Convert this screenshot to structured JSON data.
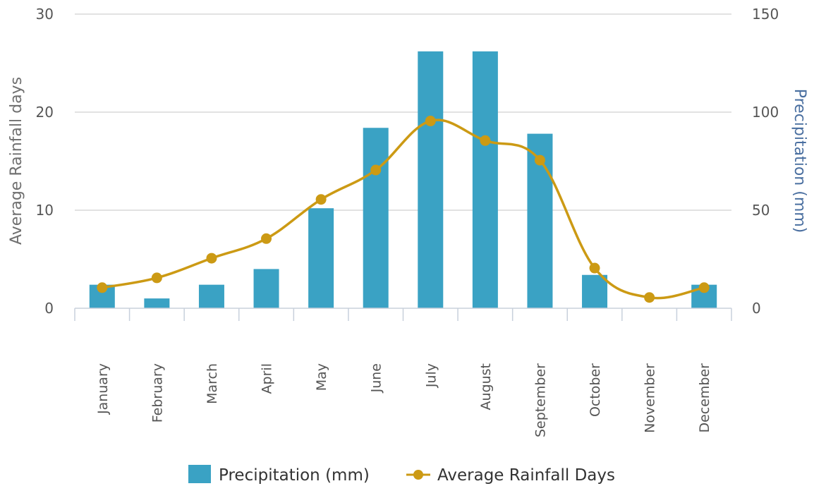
{
  "chart_data": {
    "type": "bar",
    "categories": [
      "January",
      "February",
      "March",
      "April",
      "May",
      "June",
      "July",
      "August",
      "September",
      "October",
      "November",
      "December"
    ],
    "series": [
      {
        "name": "Precipitation (mm)",
        "type": "bar",
        "axis": "right",
        "color": "#3aa2c4",
        "values": [
          12,
          5,
          12,
          20,
          51,
          92,
          131,
          131,
          89,
          17,
          0,
          12
        ]
      },
      {
        "name": "Average Rainfall Days",
        "type": "line",
        "smooth": true,
        "axis": "left",
        "color": "#cc9a14",
        "values": [
          2.1,
          3.1,
          5.1,
          7.1,
          11.1,
          14.1,
          19.1,
          17.1,
          15.1,
          4.1,
          1.1,
          2.1
        ]
      }
    ],
    "yaxis_left": {
      "title": "Average Rainfall days",
      "min": 0,
      "max": 30,
      "ticks": [
        "0",
        "10",
        "20",
        "30"
      ]
    },
    "yaxis_right": {
      "title": "Precipitation (mm)",
      "min": 0,
      "max": 150,
      "ticks": [
        "0",
        "50",
        "100",
        "150"
      ]
    },
    "grid": true,
    "legend_position": "bottom-center"
  }
}
